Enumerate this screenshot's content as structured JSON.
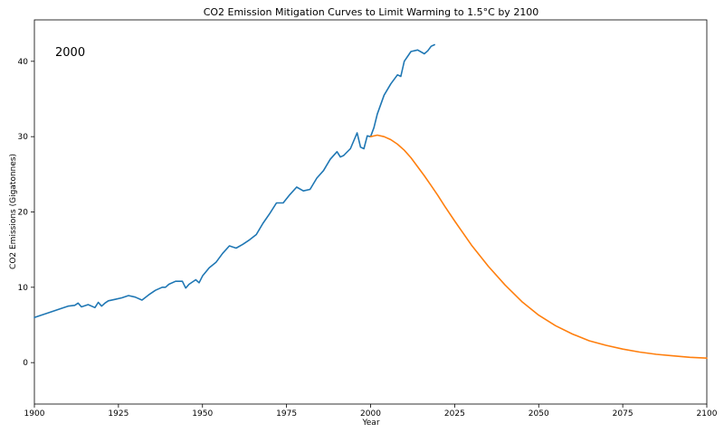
{
  "chart_data": {
    "type": "line",
    "title": "CO2 Emission Mitigation Curves to Limit Warming to 1.5°C by 2100",
    "xlabel": "Year",
    "ylabel": "CO2 Emissions (Gigatonnes)",
    "xlim": [
      1900,
      2100
    ],
    "ylim": [
      -5.5,
      45.5
    ],
    "xticks": [
      1900,
      1925,
      1950,
      1975,
      2000,
      2025,
      2050,
      2075,
      2100
    ],
    "yticks": [
      0,
      10,
      20,
      30,
      40
    ],
    "annotation": "2000",
    "grid": false,
    "legend": "none",
    "series": [
      {
        "color": "#1f77b4",
        "x": [
          1900,
          1902,
          1904,
          1906,
          1908,
          1910,
          1912,
          1913,
          1914,
          1916,
          1918,
          1919,
          1920,
          1921,
          1922,
          1924,
          1926,
          1928,
          1930,
          1932,
          1934,
          1936,
          1938,
          1939,
          1940,
          1942,
          1944,
          1945,
          1946,
          1948,
          1949,
          1950,
          1952,
          1954,
          1956,
          1958,
          1960,
          1962,
          1964,
          1966,
          1968,
          1970,
          1972,
          1974,
          1976,
          1978,
          1980,
          1982,
          1984,
          1986,
          1988,
          1990,
          1991,
          1992,
          1994,
          1996,
          1997,
          1998,
          1999,
          2000,
          2001,
          2002,
          2004,
          2006,
          2008,
          2009,
          2010,
          2012,
          2014,
          2016,
          2017,
          2018,
          2019
        ],
        "y": [
          6.0,
          6.3,
          6.6,
          6.9,
          7.2,
          7.5,
          7.6,
          7.9,
          7.4,
          7.7,
          7.3,
          8.0,
          7.5,
          7.9,
          8.2,
          8.4,
          8.6,
          8.9,
          8.7,
          8.3,
          9.0,
          9.6,
          10.0,
          10.0,
          10.4,
          10.8,
          10.8,
          9.9,
          10.4,
          11.0,
          10.6,
          11.5,
          12.6,
          13.3,
          14.5,
          15.5,
          15.2,
          15.7,
          16.3,
          17.0,
          18.5,
          19.8,
          21.2,
          21.2,
          22.3,
          23.3,
          22.8,
          23.0,
          24.5,
          25.5,
          27.0,
          28.0,
          27.3,
          27.5,
          28.4,
          30.5,
          28.6,
          28.4,
          30.1,
          30.0,
          31.2,
          33.0,
          35.5,
          37.0,
          38.2,
          38.0,
          40.0,
          41.3,
          41.5,
          41.0,
          41.4,
          42.0,
          42.2
        ]
      },
      {
        "color": "#ff7f0e",
        "x": [
          2000,
          2002,
          2004,
          2006,
          2008,
          2010,
          2012,
          2014,
          2016,
          2018,
          2020,
          2022,
          2025,
          2030,
          2035,
          2040,
          2045,
          2050,
          2055,
          2060,
          2065,
          2070,
          2075,
          2080,
          2085,
          2090,
          2095,
          2100
        ],
        "y": [
          30.0,
          30.2,
          30.0,
          29.6,
          29.0,
          28.2,
          27.2,
          26.0,
          24.8,
          23.5,
          22.2,
          20.8,
          18.8,
          15.6,
          12.8,
          10.3,
          8.1,
          6.3,
          4.9,
          3.8,
          2.9,
          2.3,
          1.8,
          1.4,
          1.1,
          0.9,
          0.7,
          0.6
        ]
      }
    ]
  }
}
